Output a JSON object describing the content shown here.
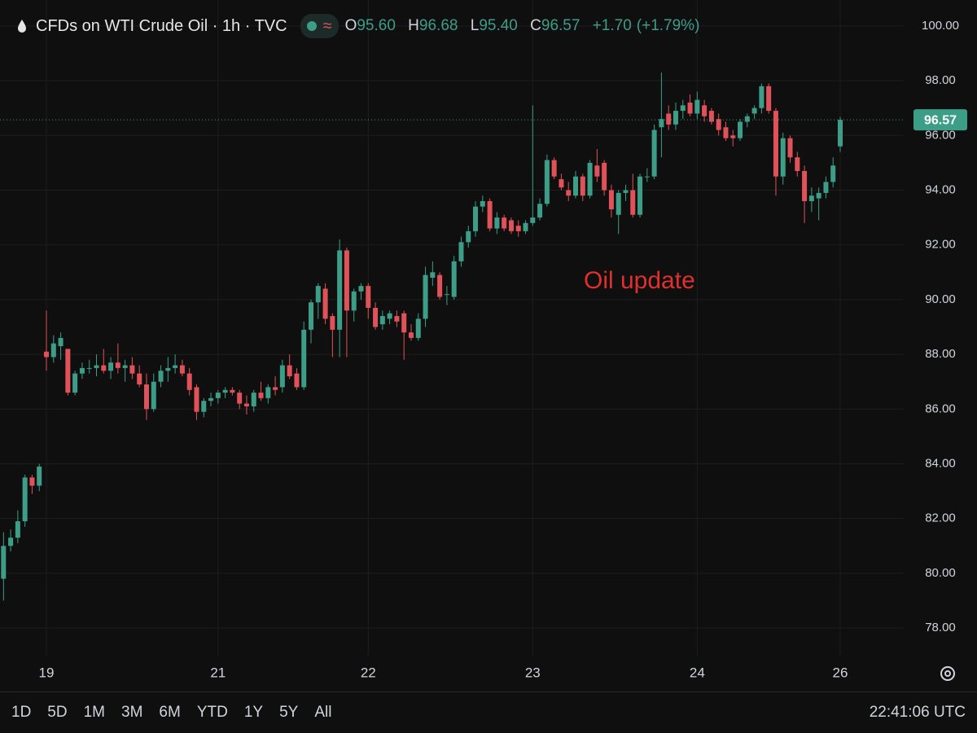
{
  "header": {
    "title": "CFDs on WTI Crude Oil · 1h · TVC",
    "ohlc_letters": [
      "O",
      "H",
      "L",
      "C"
    ],
    "ohlc_values": [
      "95.60",
      "96.68",
      "95.40",
      "96.57"
    ],
    "change": "+1.70",
    "change_pct": "(+1.79%)"
  },
  "chart_data": {
    "type": "candlestick",
    "annotation": "Oil update",
    "annotation_color": "#e0302e",
    "up_color": "#3d9e88",
    "down_color": "#e0525a",
    "grid": true,
    "ylim": [
      76.99,
      100.95
    ],
    "yticks": [
      {
        "value": 78,
        "label": "78.00"
      },
      {
        "value": 80,
        "label": "80.00"
      },
      {
        "value": 82,
        "label": "82.00"
      },
      {
        "value": 84,
        "label": "84.00"
      },
      {
        "value": 86,
        "label": "86.00"
      },
      {
        "value": 88,
        "label": "88.00"
      },
      {
        "value": 90,
        "label": "90.00"
      },
      {
        "value": 92,
        "label": "92.00"
      },
      {
        "value": 94,
        "label": "94.00"
      },
      {
        "value": 96,
        "label": "96.00"
      },
      {
        "value": 98,
        "label": "98.00"
      },
      {
        "value": 100,
        "label": "100.00"
      }
    ],
    "xlim": [
      -0.49,
      125.88
    ],
    "xticks": [
      {
        "value": 6,
        "label": "19"
      },
      {
        "value": 30,
        "label": "21"
      },
      {
        "value": 51,
        "label": "22"
      },
      {
        "value": 74,
        "label": "23"
      },
      {
        "value": 97,
        "label": "24"
      },
      {
        "value": 117,
        "label": "26"
      }
    ],
    "open": [
      79.8,
      81.0,
      81.3,
      81.9,
      83.5,
      83.2,
      88.1,
      87.9,
      88.3,
      88.2,
      86.6,
      87.3,
      87.5,
      87.5,
      87.6,
      87.4,
      87.7,
      87.5,
      87.6,
      87.3,
      86.9,
      86.0,
      87.0,
      87.4,
      87.5,
      87.6,
      87.3,
      86.8,
      85.9,
      86.3,
      86.4,
      86.6,
      86.7,
      86.6,
      86.2,
      86.1,
      86.6,
      86.4,
      86.8,
      86.8,
      87.6,
      87.3,
      86.8,
      88.9,
      89.9,
      90.4,
      89.4,
      88.9,
      91.8,
      89.6,
      90.3,
      90.5,
      89.7,
      89.1,
      89.3,
      89.4,
      89.5,
      88.8,
      88.6,
      89.3,
      90.8,
      90.9,
      90.2,
      90.1,
      91.4,
      92.1,
      92.5,
      93.4,
      93.6,
      92.6,
      93.0,
      92.9,
      92.7,
      92.5,
      92.8,
      93.0,
      93.5,
      95.1,
      94.4,
      94.0,
      93.8,
      94.5,
      93.8,
      94.9,
      95.0,
      94.0,
      93.1,
      93.9,
      94.0,
      93.1,
      94.5,
      94.5,
      96.3,
      96.8,
      96.4,
      96.9,
      97.2,
      96.8,
      97.1,
      96.9,
      96.6,
      96.3,
      96.0,
      95.9,
      96.5,
      96.8,
      97.0,
      97.8,
      96.9,
      94.5,
      95.9,
      95.2,
      94.7,
      93.6,
      93.7,
      93.9,
      94.3,
      95.6
    ],
    "high": [
      81.5,
      81.6,
      82.3,
      83.6,
      83.6,
      84.0,
      89.6,
      88.7,
      88.8,
      88.2,
      87.4,
      87.7,
      87.8,
      88.0,
      88.2,
      87.9,
      88.4,
      87.8,
      87.9,
      87.6,
      87.3,
      87.3,
      87.6,
      87.9,
      88.0,
      87.8,
      87.5,
      86.9,
      86.4,
      86.6,
      86.7,
      86.8,
      86.8,
      86.7,
      86.5,
      86.7,
      87.0,
      86.9,
      87.2,
      87.8,
      88.0,
      87.5,
      89.2,
      90.0,
      90.6,
      90.6,
      89.5,
      92.2,
      91.9,
      90.4,
      90.6,
      90.6,
      89.9,
      89.6,
      89.6,
      89.6,
      89.6,
      89.1,
      89.5,
      91.2,
      91.4,
      91.0,
      90.5,
      91.6,
      92.3,
      92.7,
      93.6,
      93.8,
      93.7,
      93.2,
      93.1,
      93.0,
      92.9,
      92.9,
      97.1,
      93.7,
      95.3,
      95.2,
      94.6,
      94.3,
      94.7,
      94.6,
      95.1,
      95.5,
      95.1,
      94.2,
      94.0,
      94.2,
      94.6,
      94.6,
      94.8,
      96.4,
      98.3,
      97.1,
      97.2,
      97.3,
      97.5,
      97.6,
      97.3,
      97.0,
      96.8,
      96.5,
      96.2,
      96.6,
      96.8,
      97.1,
      97.9,
      97.9,
      97.0,
      96.1,
      96.0,
      95.4,
      94.9,
      94.1,
      94.1,
      94.5,
      95.2,
      96.68
    ],
    "low": [
      79.0,
      80.8,
      81.1,
      81.7,
      82.9,
      83.0,
      87.4,
      87.7,
      87.8,
      86.5,
      86.5,
      87.1,
      87.3,
      87.2,
      87.3,
      87.1,
      87.3,
      87.0,
      87.1,
      86.8,
      85.6,
      85.9,
      86.8,
      87.0,
      87.3,
      87.2,
      86.5,
      85.6,
      85.7,
      86.1,
      86.2,
      86.4,
      86.5,
      86.0,
      85.8,
      85.9,
      86.3,
      86.2,
      86.5,
      86.6,
      87.1,
      86.7,
      86.7,
      88.4,
      89.3,
      89.1,
      87.9,
      87.9,
      87.9,
      89.2,
      90.0,
      89.3,
      88.9,
      88.9,
      89.1,
      89.0,
      87.8,
      88.5,
      88.5,
      89.0,
      90.5,
      90.0,
      89.8,
      90.0,
      91.2,
      91.9,
      92.3,
      93.2,
      92.5,
      92.4,
      92.5,
      92.4,
      92.3,
      92.4,
      92.7,
      92.9,
      93.4,
      94.4,
      94.0,
      93.6,
      93.7,
      93.6,
      93.7,
      94.3,
      93.8,
      93.0,
      92.4,
      93.6,
      93.0,
      93.0,
      94.3,
      94.4,
      95.2,
      96.2,
      96.2,
      96.6,
      96.7,
      96.6,
      96.5,
      96.4,
      96.0,
      95.8,
      95.6,
      95.8,
      96.3,
      96.6,
      96.8,
      96.8,
      93.8,
      94.2,
      95.0,
      94.5,
      92.8,
      93.2,
      92.9,
      93.7,
      94.1,
      95.4
    ],
    "close": [
      81.0,
      81.3,
      81.9,
      83.5,
      83.2,
      83.9,
      87.9,
      88.4,
      88.6,
      86.6,
      87.3,
      87.5,
      87.5,
      87.6,
      87.4,
      87.7,
      87.5,
      87.6,
      87.3,
      86.9,
      86.0,
      87.0,
      87.4,
      87.5,
      87.6,
      87.3,
      86.7,
      85.9,
      86.3,
      86.4,
      86.6,
      86.7,
      86.6,
      86.2,
      86.1,
      86.6,
      86.4,
      86.8,
      86.7,
      87.6,
      87.2,
      86.8,
      88.9,
      89.9,
      90.5,
      89.3,
      88.9,
      91.8,
      89.6,
      90.3,
      90.5,
      89.7,
      89.0,
      89.4,
      89.5,
      89.2,
      88.8,
      88.6,
      89.3,
      90.9,
      91.0,
      90.1,
      90.2,
      91.4,
      92.1,
      92.5,
      93.4,
      93.6,
      92.6,
      93.0,
      92.6,
      92.5,
      92.5,
      92.8,
      93.0,
      93.5,
      95.1,
      94.5,
      94.1,
      93.8,
      94.5,
      93.8,
      95.0,
      94.5,
      94.0,
      93.3,
      93.9,
      94.0,
      93.1,
      94.5,
      94.5,
      96.2,
      96.6,
      96.4,
      96.9,
      97.1,
      96.8,
      97.3,
      96.7,
      96.5,
      96.2,
      95.9,
      95.9,
      96.5,
      96.7,
      97.0,
      97.8,
      96.9,
      94.5,
      95.9,
      95.2,
      94.7,
      93.6,
      93.8,
      93.9,
      94.3,
      94.9,
      96.57
    ]
  },
  "toolbar": {
    "ranges": [
      "1D",
      "5D",
      "1M",
      "3M",
      "6M",
      "YTD",
      "1Y",
      "5Y",
      "All"
    ],
    "clock": "22:41:06 UTC"
  }
}
